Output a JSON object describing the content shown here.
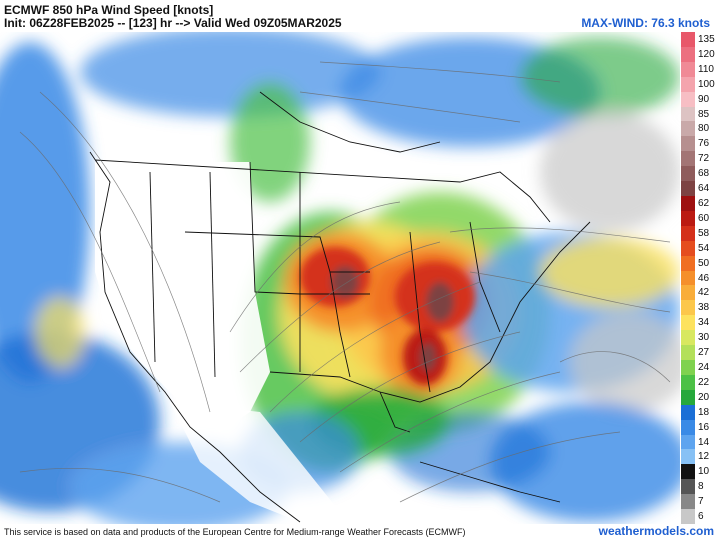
{
  "header": {
    "title": "ECMWF 850 hPa Wind Speed [knots]",
    "init_line": "Init: 06Z28FEB2025 -- [123] hr --> Valid Wed 09Z05MAR2025",
    "max_wind": "MAX-WIND: 76.3 knots"
  },
  "footer": {
    "attribution": "This service is based on data and products of the European Centre for Medium-range Weather Forecasts (ECMWF)",
    "site": "weathermodels.com"
  },
  "legend": {
    "levels": [
      {
        "value": "135",
        "color": "#e8586a"
      },
      {
        "value": "120",
        "color": "#ec7080"
      },
      {
        "value": "110",
        "color": "#f08a96"
      },
      {
        "value": "100",
        "color": "#f4a4ad"
      },
      {
        "value": "90",
        "color": "#f7bec4"
      },
      {
        "value": "85",
        "color": "#ddc3c3"
      },
      {
        "value": "80",
        "color": "#c9a9a9"
      },
      {
        "value": "76",
        "color": "#b68f8f"
      },
      {
        "value": "72",
        "color": "#a37575"
      },
      {
        "value": "68",
        "color": "#8f5c5c"
      },
      {
        "value": "64",
        "color": "#7d4343"
      },
      {
        "value": "62",
        "color": "#9e1010"
      },
      {
        "value": "60",
        "color": "#bb1a12"
      },
      {
        "value": "58",
        "color": "#d4301a"
      },
      {
        "value": "54",
        "color": "#e54d1f"
      },
      {
        "value": "50",
        "color": "#f06e22"
      },
      {
        "value": "46",
        "color": "#f58f2b"
      },
      {
        "value": "42",
        "color": "#f9ad3a"
      },
      {
        "value": "38",
        "color": "#fcc74b"
      },
      {
        "value": "34",
        "color": "#fde25e"
      },
      {
        "value": "30",
        "color": "#d8e860"
      },
      {
        "value": "27",
        "color": "#b3e05a"
      },
      {
        "value": "24",
        "color": "#7fd24f"
      },
      {
        "value": "22",
        "color": "#4cc146"
      },
      {
        "value": "20",
        "color": "#26a83b"
      },
      {
        "value": "18",
        "color": "#1b6fd6"
      },
      {
        "value": "16",
        "color": "#3a8ae6"
      },
      {
        "value": "14",
        "color": "#5ea4ef"
      },
      {
        "value": "12",
        "color": "#87c1f5"
      },
      {
        "value": "10",
        "color": "#111111"
      },
      {
        "value": "8",
        "color": "#555555"
      },
      {
        "value": "7",
        "color": "#888888"
      },
      {
        "value": "6",
        "color": "#c8c8c8"
      }
    ]
  }
}
